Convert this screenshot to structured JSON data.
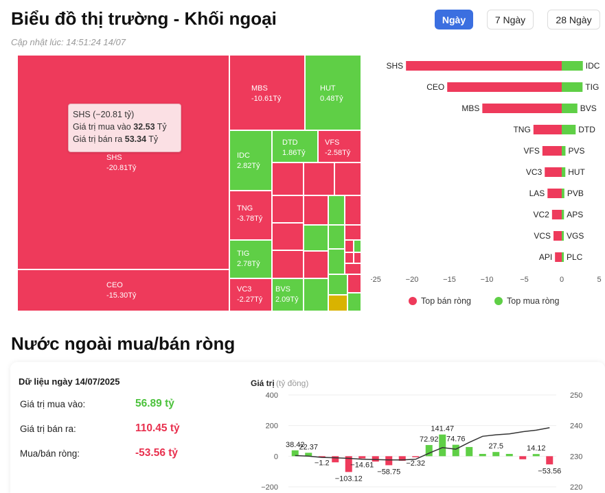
{
  "header": {
    "title": "Biểu đồ thị trường - Khối ngoại",
    "updated": "Cập nhật lúc: 14:51:24 14/07",
    "buttons": [
      "Ngày",
      "7 Ngày",
      "28 Ngày"
    ],
    "active_button": "Ngày"
  },
  "colors": {
    "sell": "#ee3a5b",
    "buy": "#5fcf46",
    "accent": "#3b6fe0",
    "neutral": "#d9b300"
  },
  "treemap": [
    {
      "ticker": "SHS",
      "value": "-20.81Tỷ",
      "color": "red"
    },
    {
      "ticker": "CEO",
      "value": "-15.30Tỷ",
      "color": "red"
    },
    {
      "ticker": "MBS",
      "value": "-10.61Tỷ",
      "color": "red"
    },
    {
      "ticker": "HUT",
      "value": "0.48Tỷ",
      "color": "green"
    },
    {
      "ticker": "IDC",
      "value": "2.82Tỷ",
      "color": "green"
    },
    {
      "ticker": "DTD",
      "value": "1.86Tỷ",
      "color": "green"
    },
    {
      "ticker": "VFS",
      "value": "-2.58Tỷ",
      "color": "red"
    },
    {
      "ticker": "TNG",
      "value": "-3.78Tỷ",
      "color": "red"
    },
    {
      "ticker": "TIG",
      "value": "2.78Tỷ",
      "color": "green"
    },
    {
      "ticker": "VC3",
      "value": "-2.27Tỷ",
      "color": "red"
    },
    {
      "ticker": "BVS",
      "value": "2.09Tỷ",
      "color": "green"
    }
  ],
  "tooltip": {
    "title": "SHS (−20.81 tỷ)",
    "buy_label": "Giá trị mua vào",
    "buy_value": "32.53",
    "sell_label": "Giá trị bán ra",
    "sell_value": "53.34",
    "unit": "Tỷ"
  },
  "top_chart": {
    "sell_tickers": [
      "SHS",
      "CEO",
      "MBS",
      "TNG",
      "VFS",
      "VC3",
      "LAS",
      "VC2",
      "VCS",
      "API"
    ],
    "sell_values": [
      -20.81,
      -15.3,
      -10.61,
      -3.78,
      -2.58,
      -2.27,
      -1.9,
      -1.3,
      -1.1,
      -0.9
    ],
    "buy_tickers": [
      "IDC",
      "TIG",
      "BVS",
      "DTD",
      "PVS",
      "HUT",
      "PVB",
      "APS",
      "VGS",
      "PLC"
    ],
    "buy_values": [
      2.82,
      2.78,
      2.09,
      1.86,
      0.5,
      0.48,
      0.35,
      0.3,
      0.25,
      0.2
    ],
    "x_ticks": [
      "−25",
      "−20",
      "−15",
      "−10",
      "−5",
      "0",
      "5"
    ],
    "legend_sell": "Top bán ròng",
    "legend_buy": "Top mua ròng"
  },
  "section2": {
    "title": "Nước ngoài mua/bán ròng",
    "date_label": "Dữ liệu ngày 14/07/2025",
    "buy_label": "Giá trị mua vào:",
    "buy_value": "56.89 tỷ",
    "sell_label": "Giá trị bán ra:",
    "sell_value": "110.45 tỷ",
    "net_label": "Mua/bán ròng:",
    "net_value": "-53.56 tỷ"
  },
  "chart_data": {
    "type": "bar",
    "title": "Giá trị",
    "ylabel": "(tỷ đồng)",
    "ylim": [
      -200,
      400
    ],
    "y2lim": [
      220,
      250
    ],
    "y_ticks": [
      "400",
      "200",
      "0",
      "−200"
    ],
    "y2_ticks": [
      "250",
      "240",
      "230",
      "220"
    ],
    "values": [
      38.42,
      22.37,
      -1.2,
      -40,
      -103.12,
      -14.61,
      -35,
      -58.75,
      -30,
      -2.32,
      72.92,
      141.47,
      74.76,
      60,
      15,
      27.5,
      15,
      -20,
      14.12,
      -53.56
    ],
    "data_labels": [
      "38.42",
      "22.37",
      "−1.2",
      "",
      "−103.12",
      "−14.61",
      "",
      "−58.75",
      "",
      "−2.32",
      "72.92",
      "141.47",
      "74.76",
      "",
      "",
      "27.5",
      "",
      "",
      "14.12",
      "−53.56"
    ],
    "line_values": [
      230.2,
      230.0,
      229.6,
      229.5,
      229.3,
      229.0,
      228.9,
      228.8,
      228.8,
      229.0,
      231.0,
      232.8,
      232.3,
      234.5,
      236.5,
      237.0,
      237.3,
      238.0,
      238.5,
      239.3
    ]
  }
}
